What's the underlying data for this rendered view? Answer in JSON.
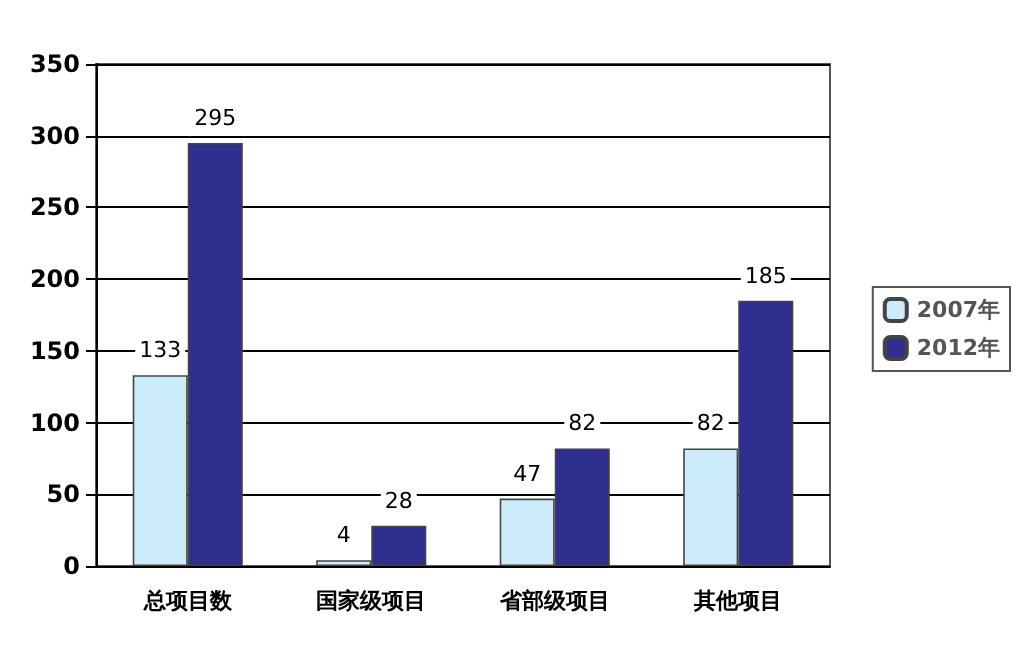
{
  "chart_data": {
    "type": "bar",
    "categories": [
      "总项目数",
      "国家级项目",
      "省部级项目",
      "其他项目"
    ],
    "series": [
      {
        "name": "2007年",
        "color": "#ccecfa",
        "values": [
          133,
          4,
          47,
          82
        ]
      },
      {
        "name": "2012年",
        "color": "#2e2e8f",
        "values": [
          295,
          28,
          82,
          185
        ]
      }
    ],
    "ylim": [
      0,
      350
    ],
    "yticks": [
      0,
      50,
      100,
      150,
      200,
      250,
      300,
      350
    ],
    "grid": "y",
    "legend": "right",
    "data_labels": true
  }
}
